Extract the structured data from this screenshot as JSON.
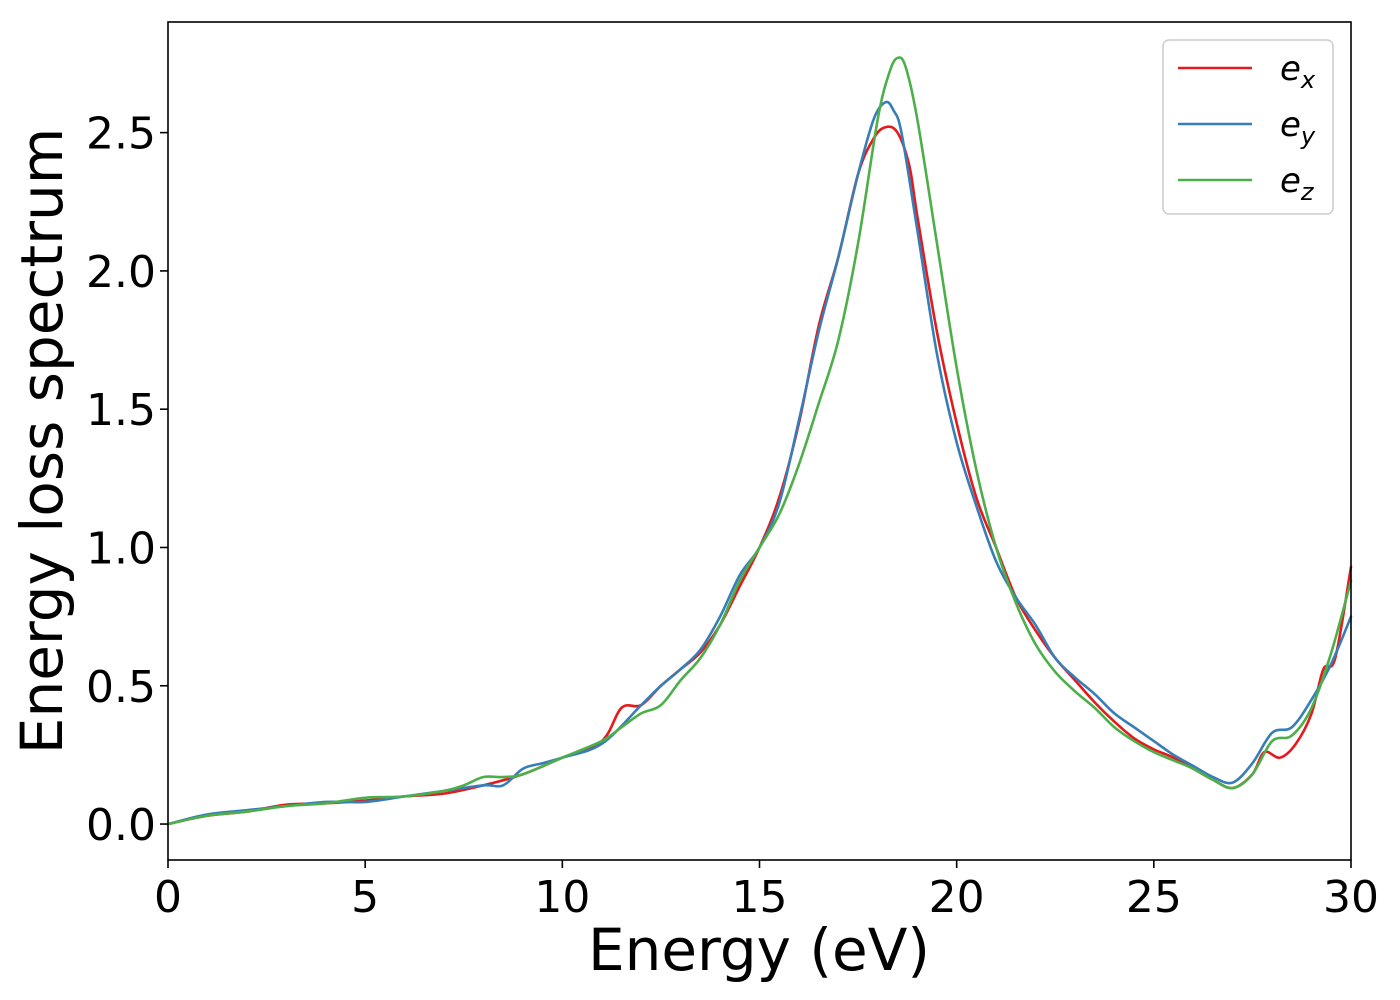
{
  "chart_data": {
    "type": "line",
    "title": "",
    "xlabel": "Energy (eV)",
    "ylabel": "Energy loss spectrum",
    "xlim": [
      0,
      30
    ],
    "ylim": [
      -0.13,
      2.9
    ],
    "xticks": [
      0,
      5,
      10,
      15,
      20,
      25,
      30
    ],
    "xtick_labels": [
      "0",
      "5",
      "10",
      "15",
      "20",
      "25",
      "30"
    ],
    "yticks": [
      0.0,
      0.5,
      1.0,
      1.5,
      2.0,
      2.5
    ],
    "ytick_labels": [
      "0.0",
      "0.5",
      "1.0",
      "1.5",
      "2.0",
      "2.5"
    ],
    "grid": false,
    "legend_position": "top-right",
    "series": [
      {
        "name": "e_x",
        "label_base": "e",
        "label_sub": "x",
        "color": "#e41a1c",
        "x": [
          0,
          1,
          2,
          3,
          4,
          5,
          6,
          7,
          8,
          9,
          10,
          11,
          11.5,
          12,
          12.5,
          13,
          13.5,
          14,
          14.5,
          15,
          15.5,
          16,
          16.5,
          17,
          17.5,
          17.9,
          18.2,
          18.5,
          18.8,
          19,
          19.5,
          20,
          20.5,
          21,
          21.5,
          22,
          22.5,
          23,
          23.5,
          24,
          24.5,
          25,
          25.5,
          26,
          26.5,
          27,
          27.5,
          27.8,
          28.2,
          28.6,
          29,
          29.3,
          29.6,
          30
        ],
        "y": [
          0.0,
          0.03,
          0.045,
          0.07,
          0.075,
          0.085,
          0.1,
          0.11,
          0.14,
          0.18,
          0.24,
          0.3,
          0.42,
          0.43,
          0.5,
          0.56,
          0.62,
          0.72,
          0.86,
          1.0,
          1.18,
          1.45,
          1.8,
          2.05,
          2.35,
          2.48,
          2.52,
          2.5,
          2.38,
          2.2,
          1.78,
          1.45,
          1.18,
          1.0,
          0.82,
          0.7,
          0.6,
          0.52,
          0.44,
          0.37,
          0.31,
          0.27,
          0.24,
          0.2,
          0.16,
          0.13,
          0.18,
          0.26,
          0.24,
          0.29,
          0.4,
          0.56,
          0.6,
          0.93
        ]
      },
      {
        "name": "e_y",
        "label_base": "e",
        "label_sub": "y",
        "color": "#377eb8",
        "x": [
          0,
          1,
          2,
          3,
          4,
          5,
          6,
          7,
          8,
          8.5,
          9,
          9.5,
          10,
          11,
          12,
          12.5,
          13,
          13.5,
          14,
          14.5,
          15,
          15.5,
          16,
          16.5,
          17,
          17.5,
          17.9,
          18.2,
          18.4,
          18.6,
          19,
          19.5,
          20,
          20.5,
          21,
          21.5,
          22,
          22.5,
          23,
          23.5,
          24,
          24.5,
          25,
          25.5,
          26,
          26.5,
          27,
          27.5,
          28,
          28.5,
          29,
          29.5,
          30
        ],
        "y": [
          0.0,
          0.035,
          0.05,
          0.065,
          0.08,
          0.08,
          0.1,
          0.12,
          0.14,
          0.14,
          0.2,
          0.22,
          0.24,
          0.29,
          0.43,
          0.5,
          0.56,
          0.63,
          0.75,
          0.9,
          1.0,
          1.16,
          1.46,
          1.78,
          2.05,
          2.35,
          2.55,
          2.61,
          2.58,
          2.5,
          2.15,
          1.7,
          1.38,
          1.15,
          0.95,
          0.82,
          0.72,
          0.6,
          0.53,
          0.47,
          0.4,
          0.35,
          0.3,
          0.25,
          0.21,
          0.17,
          0.15,
          0.22,
          0.33,
          0.35,
          0.45,
          0.58,
          0.75
        ]
      },
      {
        "name": "e_z",
        "label_base": "e",
        "label_sub": "z",
        "color": "#4daf4a",
        "x": [
          0,
          1,
          2,
          3,
          4,
          5,
          6,
          7,
          7.5,
          8,
          8.5,
          9,
          10,
          11,
          11.5,
          12,
          12.5,
          13,
          13.5,
          14,
          14.5,
          15,
          15.5,
          16,
          16.5,
          17,
          17.5,
          18,
          18.3,
          18.5,
          18.7,
          19,
          19.5,
          20,
          20.5,
          21,
          21.5,
          22,
          22.5,
          23,
          23.5,
          24,
          24.5,
          25,
          25.5,
          26,
          26.5,
          27,
          27.5,
          28,
          28.5,
          29,
          29.5,
          30
        ],
        "y": [
          0.0,
          0.03,
          0.045,
          0.065,
          0.075,
          0.095,
          0.1,
          0.12,
          0.14,
          0.17,
          0.17,
          0.18,
          0.24,
          0.3,
          0.35,
          0.4,
          0.43,
          0.52,
          0.6,
          0.72,
          0.88,
          1.0,
          1.12,
          1.3,
          1.52,
          1.75,
          2.1,
          2.55,
          2.72,
          2.77,
          2.74,
          2.55,
          2.1,
          1.65,
          1.28,
          1.0,
          0.8,
          0.65,
          0.55,
          0.48,
          0.42,
          0.35,
          0.3,
          0.26,
          0.23,
          0.2,
          0.16,
          0.13,
          0.18,
          0.3,
          0.32,
          0.42,
          0.62,
          0.88
        ]
      }
    ]
  }
}
